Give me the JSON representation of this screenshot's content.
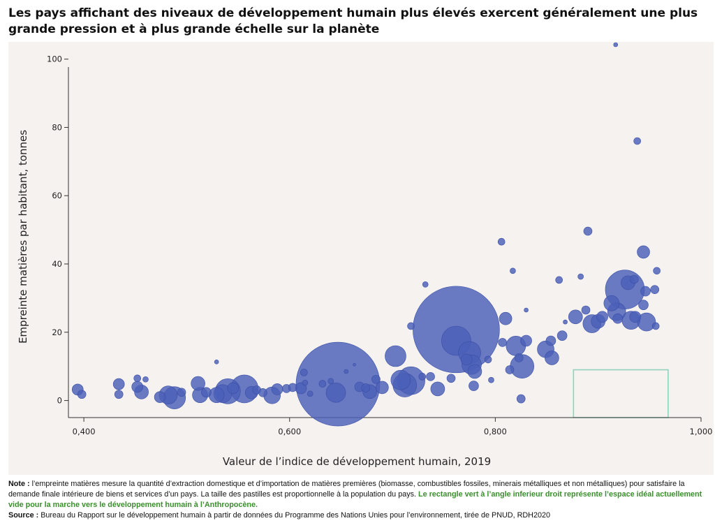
{
  "title": "Les pays affichant des niveaux de développement humain plus élevés exercent généralement une plus grande pression et à plus grande échelle sur la planète",
  "colors": {
    "bubble": "#4a5fb8",
    "bubble_stroke": "#3a4ea5",
    "ideal_rect": "#8fd3bf",
    "panel": "#f5f2ef"
  },
  "chart_data": {
    "type": "scatter",
    "title": "Les pays affichant des niveaux de développement humain plus élevés exercent généralement une plus grande pression et à plus grande échelle sur la planète",
    "xlabel": "Valeur de l’indice de développement humain, 2019",
    "ylabel": "Empreinte matières par habitant, tonnes",
    "xlim": [
      0.385,
      1.0
    ],
    "ylim": [
      -5,
      103
    ],
    "xticks": [
      0.4,
      0.6,
      0.8,
      1.0
    ],
    "xtick_labels": [
      "0,400",
      "0,600",
      "0,800",
      "1,000"
    ],
    "yticks": [
      0,
      20,
      40,
      60,
      80,
      100
    ],
    "ytick_labels": [
      "0",
      "20",
      "40",
      "60",
      "80",
      "100"
    ],
    "size_encoding": "population (relative)",
    "ideal_region": {
      "x": [
        0.876,
        0.968
      ],
      "y": [
        -5,
        9
      ]
    },
    "points": [
      {
        "x": 0.394,
        "y": 3.2,
        "s": 8
      },
      {
        "x": 0.398,
        "y": 1.8,
        "s": 6
      },
      {
        "x": 0.434,
        "y": 4.8,
        "s": 8
      },
      {
        "x": 0.434,
        "y": 1.8,
        "s": 6
      },
      {
        "x": 0.452,
        "y": 6.5,
        "s": 5
      },
      {
        "x": 0.452,
        "y": 4.0,
        "s": 8
      },
      {
        "x": 0.456,
        "y": 2.5,
        "s": 10
      },
      {
        "x": 0.46,
        "y": 6.2,
        "s": 4
      },
      {
        "x": 0.474,
        "y": 1.0,
        "s": 8
      },
      {
        "x": 0.482,
        "y": 1.6,
        "s": 13
      },
      {
        "x": 0.488,
        "y": 0.8,
        "s": 16
      },
      {
        "x": 0.495,
        "y": 2.4,
        "s": 6
      },
      {
        "x": 0.511,
        "y": 5.0,
        "s": 10
      },
      {
        "x": 0.513,
        "y": 1.6,
        "s": 11
      },
      {
        "x": 0.519,
        "y": 2.4,
        "s": 7
      },
      {
        "x": 0.529,
        "y": 11.3,
        "s": 3
      },
      {
        "x": 0.529,
        "y": 1.6,
        "s": 11
      },
      {
        "x": 0.535,
        "y": 2.0,
        "s": 13
      },
      {
        "x": 0.54,
        "y": 2.7,
        "s": 18
      },
      {
        "x": 0.545,
        "y": 3.6,
        "s": 8
      },
      {
        "x": 0.556,
        "y": 3.4,
        "s": 20
      },
      {
        "x": 0.563,
        "y": 2.3,
        "s": 9
      },
      {
        "x": 0.568,
        "y": 3.1,
        "s": 6
      },
      {
        "x": 0.574,
        "y": 2.3,
        "s": 6
      },
      {
        "x": 0.583,
        "y": 1.5,
        "s": 12
      },
      {
        "x": 0.588,
        "y": 3.3,
        "s": 8
      },
      {
        "x": 0.597,
        "y": 3.5,
        "s": 6
      },
      {
        "x": 0.603,
        "y": 3.8,
        "s": 6
      },
      {
        "x": 0.611,
        "y": 3.6,
        "s": 8
      },
      {
        "x": 0.615,
        "y": 5.2,
        "s": 4
      },
      {
        "x": 0.614,
        "y": 8.2,
        "s": 5
      },
      {
        "x": 0.62,
        "y": 2.0,
        "s": 4
      },
      {
        "x": 0.632,
        "y": 4.9,
        "s": 5
      },
      {
        "x": 0.64,
        "y": 5.7,
        "s": 4
      },
      {
        "x": 0.645,
        "y": 2.3,
        "s": 14
      },
      {
        "x": 0.647,
        "y": 4.8,
        "s": 60
      },
      {
        "x": 0.655,
        "y": 8.5,
        "s": 3
      },
      {
        "x": 0.663,
        "y": 10.5,
        "s": 2
      },
      {
        "x": 0.668,
        "y": 4.0,
        "s": 7
      },
      {
        "x": 0.674,
        "y": 3.7,
        "s": 6
      },
      {
        "x": 0.678,
        "y": 2.6,
        "s": 10
      },
      {
        "x": 0.684,
        "y": 6.2,
        "s": 6
      },
      {
        "x": 0.69,
        "y": 3.8,
        "s": 9
      },
      {
        "x": 0.703,
        "y": 13.0,
        "s": 15
      },
      {
        "x": 0.708,
        "y": 6.0,
        "s": 14
      },
      {
        "x": 0.712,
        "y": 4.5,
        "s": 17
      },
      {
        "x": 0.718,
        "y": 5.8,
        "s": 20
      },
      {
        "x": 0.718,
        "y": 21.8,
        "s": 5
      },
      {
        "x": 0.729,
        "y": 7.0,
        "s": 5
      },
      {
        "x": 0.732,
        "y": 34.0,
        "s": 4
      },
      {
        "x": 0.737,
        "y": 7.0,
        "s": 6
      },
      {
        "x": 0.744,
        "y": 3.4,
        "s": 10
      },
      {
        "x": 0.757,
        "y": 6.5,
        "s": 6
      },
      {
        "x": 0.762,
        "y": 20.8,
        "s": 62
      },
      {
        "x": 0.762,
        "y": 17.5,
        "s": 21
      },
      {
        "x": 0.775,
        "y": 14.0,
        "s": 16
      },
      {
        "x": 0.772,
        "y": 12.0,
        "s": 8
      },
      {
        "x": 0.777,
        "y": 10.5,
        "s": 14
      },
      {
        "x": 0.78,
        "y": 8.5,
        "s": 10
      },
      {
        "x": 0.779,
        "y": 4.3,
        "s": 7
      },
      {
        "x": 0.793,
        "y": 12.0,
        "s": 5
      },
      {
        "x": 0.796,
        "y": 6.0,
        "s": 4
      },
      {
        "x": 0.806,
        "y": 46.5,
        "s": 5
      },
      {
        "x": 0.807,
        "y": 17.0,
        "s": 6
      },
      {
        "x": 0.81,
        "y": 24.0,
        "s": 9
      },
      {
        "x": 0.814,
        "y": 9.0,
        "s": 6
      },
      {
        "x": 0.817,
        "y": 38.0,
        "s": 4
      },
      {
        "x": 0.82,
        "y": 16.0,
        "s": 14
      },
      {
        "x": 0.823,
        "y": 12.5,
        "s": 6
      },
      {
        "x": 0.826,
        "y": 10.0,
        "s": 17
      },
      {
        "x": 0.825,
        "y": 0.5,
        "s": 6
      },
      {
        "x": 0.83,
        "y": 17.5,
        "s": 8
      },
      {
        "x": 0.83,
        "y": 26.5,
        "s": 3
      },
      {
        "x": 0.849,
        "y": 15.0,
        "s": 12
      },
      {
        "x": 0.854,
        "y": 17.5,
        "s": 7
      },
      {
        "x": 0.855,
        "y": 12.5,
        "s": 10
      },
      {
        "x": 0.862,
        "y": 35.3,
        "s": 5
      },
      {
        "x": 0.865,
        "y": 19.0,
        "s": 7
      },
      {
        "x": 0.868,
        "y": 23.0,
        "s": 3
      },
      {
        "x": 0.878,
        "y": 24.5,
        "s": 10
      },
      {
        "x": 0.883,
        "y": 36.3,
        "s": 4
      },
      {
        "x": 0.888,
        "y": 26.5,
        "s": 6
      },
      {
        "x": 0.89,
        "y": 49.6,
        "s": 6
      },
      {
        "x": 0.894,
        "y": 22.5,
        "s": 13
      },
      {
        "x": 0.9,
        "y": 23.2,
        "s": 10
      },
      {
        "x": 0.904,
        "y": 24.5,
        "s": 8
      },
      {
        "x": 0.913,
        "y": 28.5,
        "s": 11
      },
      {
        "x": 0.917,
        "y": 105.0,
        "s": 3
      },
      {
        "x": 0.918,
        "y": 26.0,
        "s": 13
      },
      {
        "x": 0.919,
        "y": 24.0,
        "s": 7
      },
      {
        "x": 0.926,
        "y": 32.5,
        "s": 28
      },
      {
        "x": 0.929,
        "y": 34.5,
        "s": 10
      },
      {
        "x": 0.935,
        "y": 35.5,
        "s": 6
      },
      {
        "x": 0.932,
        "y": 23.5,
        "s": 13
      },
      {
        "x": 0.936,
        "y": 24.5,
        "s": 8
      },
      {
        "x": 0.938,
        "y": 76.0,
        "s": 5
      },
      {
        "x": 0.944,
        "y": 43.5,
        "s": 9
      },
      {
        "x": 0.944,
        "y": 28.0,
        "s": 7
      },
      {
        "x": 0.946,
        "y": 32.0,
        "s": 7
      },
      {
        "x": 0.947,
        "y": 23.0,
        "s": 13
      },
      {
        "x": 0.955,
        "y": 32.5,
        "s": 6
      },
      {
        "x": 0.957,
        "y": 38.0,
        "s": 5
      },
      {
        "x": 0.956,
        "y": 21.8,
        "s": 5
      }
    ]
  },
  "notes": {
    "note_label": "Note :",
    "note_text": " l’empreinte matières mesure la quantité d’extraction domestique et d’importation de matières premières (biomasse, combustibles fossiles, minerais métalliques et non métalliques) pour satisfaire la demande finale intérieure de biens et services d’un pays. La taille des pastilles est proportionnelle à la population du pays. ",
    "note_green": "Le rectangle vert à l’angle inferieur droit représente l’espace idéal actuellement vide pour la marche vers le développement humain à l’Anthropocène.",
    "source_label": "Source :",
    "source_text": " Bureau du Rapport sur le développement humain à partir de données du Programme des Nations Unies pour l’environnement, tirée de PNUD, RDH2020"
  }
}
